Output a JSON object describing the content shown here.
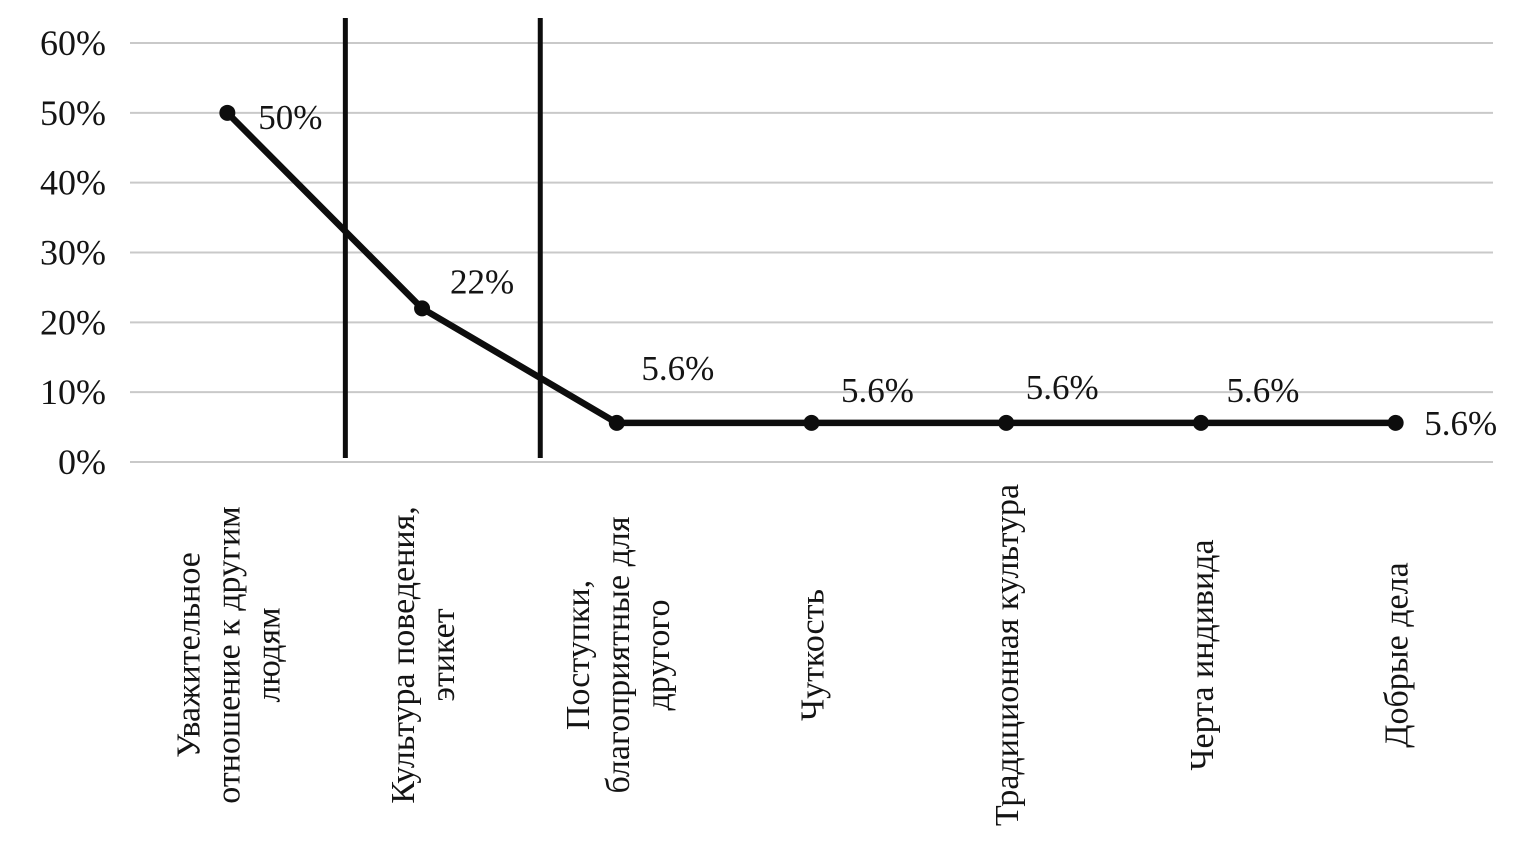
{
  "chart_data": {
    "type": "line",
    "title": "",
    "xlabel": "",
    "ylabel": "",
    "categories": [
      "Уважительное отношение к другим людям",
      "Культура поведения, этикет",
      "Поступки, благоприятные для другого",
      "Чуткость",
      "Традиционная культура",
      "Черта индивида",
      "Добрые дела"
    ],
    "category_label_lines": [
      [
        "Уважительное",
        "отношение к другим",
        "людям"
      ],
      [
        "Культура поведения,",
        "этикет"
      ],
      [
        "Поступки,",
        "благоприятные для",
        "другого"
      ],
      [
        "Чуткость"
      ],
      [
        "Традиционная культура"
      ],
      [
        "Черта индивида"
      ],
      [
        "Добрые дела"
      ]
    ],
    "values": [
      50,
      22,
      5.6,
      5.6,
      5.6,
      5.6,
      5.6
    ],
    "data_labels": [
      "50%",
      "22%",
      "5.6%",
      "5.6%",
      "5.6%",
      "5.6%",
      "5.6%"
    ],
    "ylim": [
      0,
      60
    ],
    "y_ticks": [
      {
        "value": 0,
        "label": "0%"
      },
      {
        "value": 10,
        "label": "10%"
      },
      {
        "value": 20,
        "label": "20%"
      },
      {
        "value": 30,
        "label": "30%"
      },
      {
        "value": 40,
        "label": "40%"
      },
      {
        "value": 50,
        "label": "50%"
      },
      {
        "value": 60,
        "label": "60%"
      }
    ],
    "grid": "horizontal",
    "legend": "none",
    "series_color": "#0d0d0d",
    "gridline_color": "#c9c9c9",
    "text_color": "#141414",
    "annotations": {
      "vertical_separators": [
        {
          "x_fraction": 0.158
        },
        {
          "x_fraction": 0.301
        }
      ],
      "separator_color": "#0d0d0d"
    }
  }
}
